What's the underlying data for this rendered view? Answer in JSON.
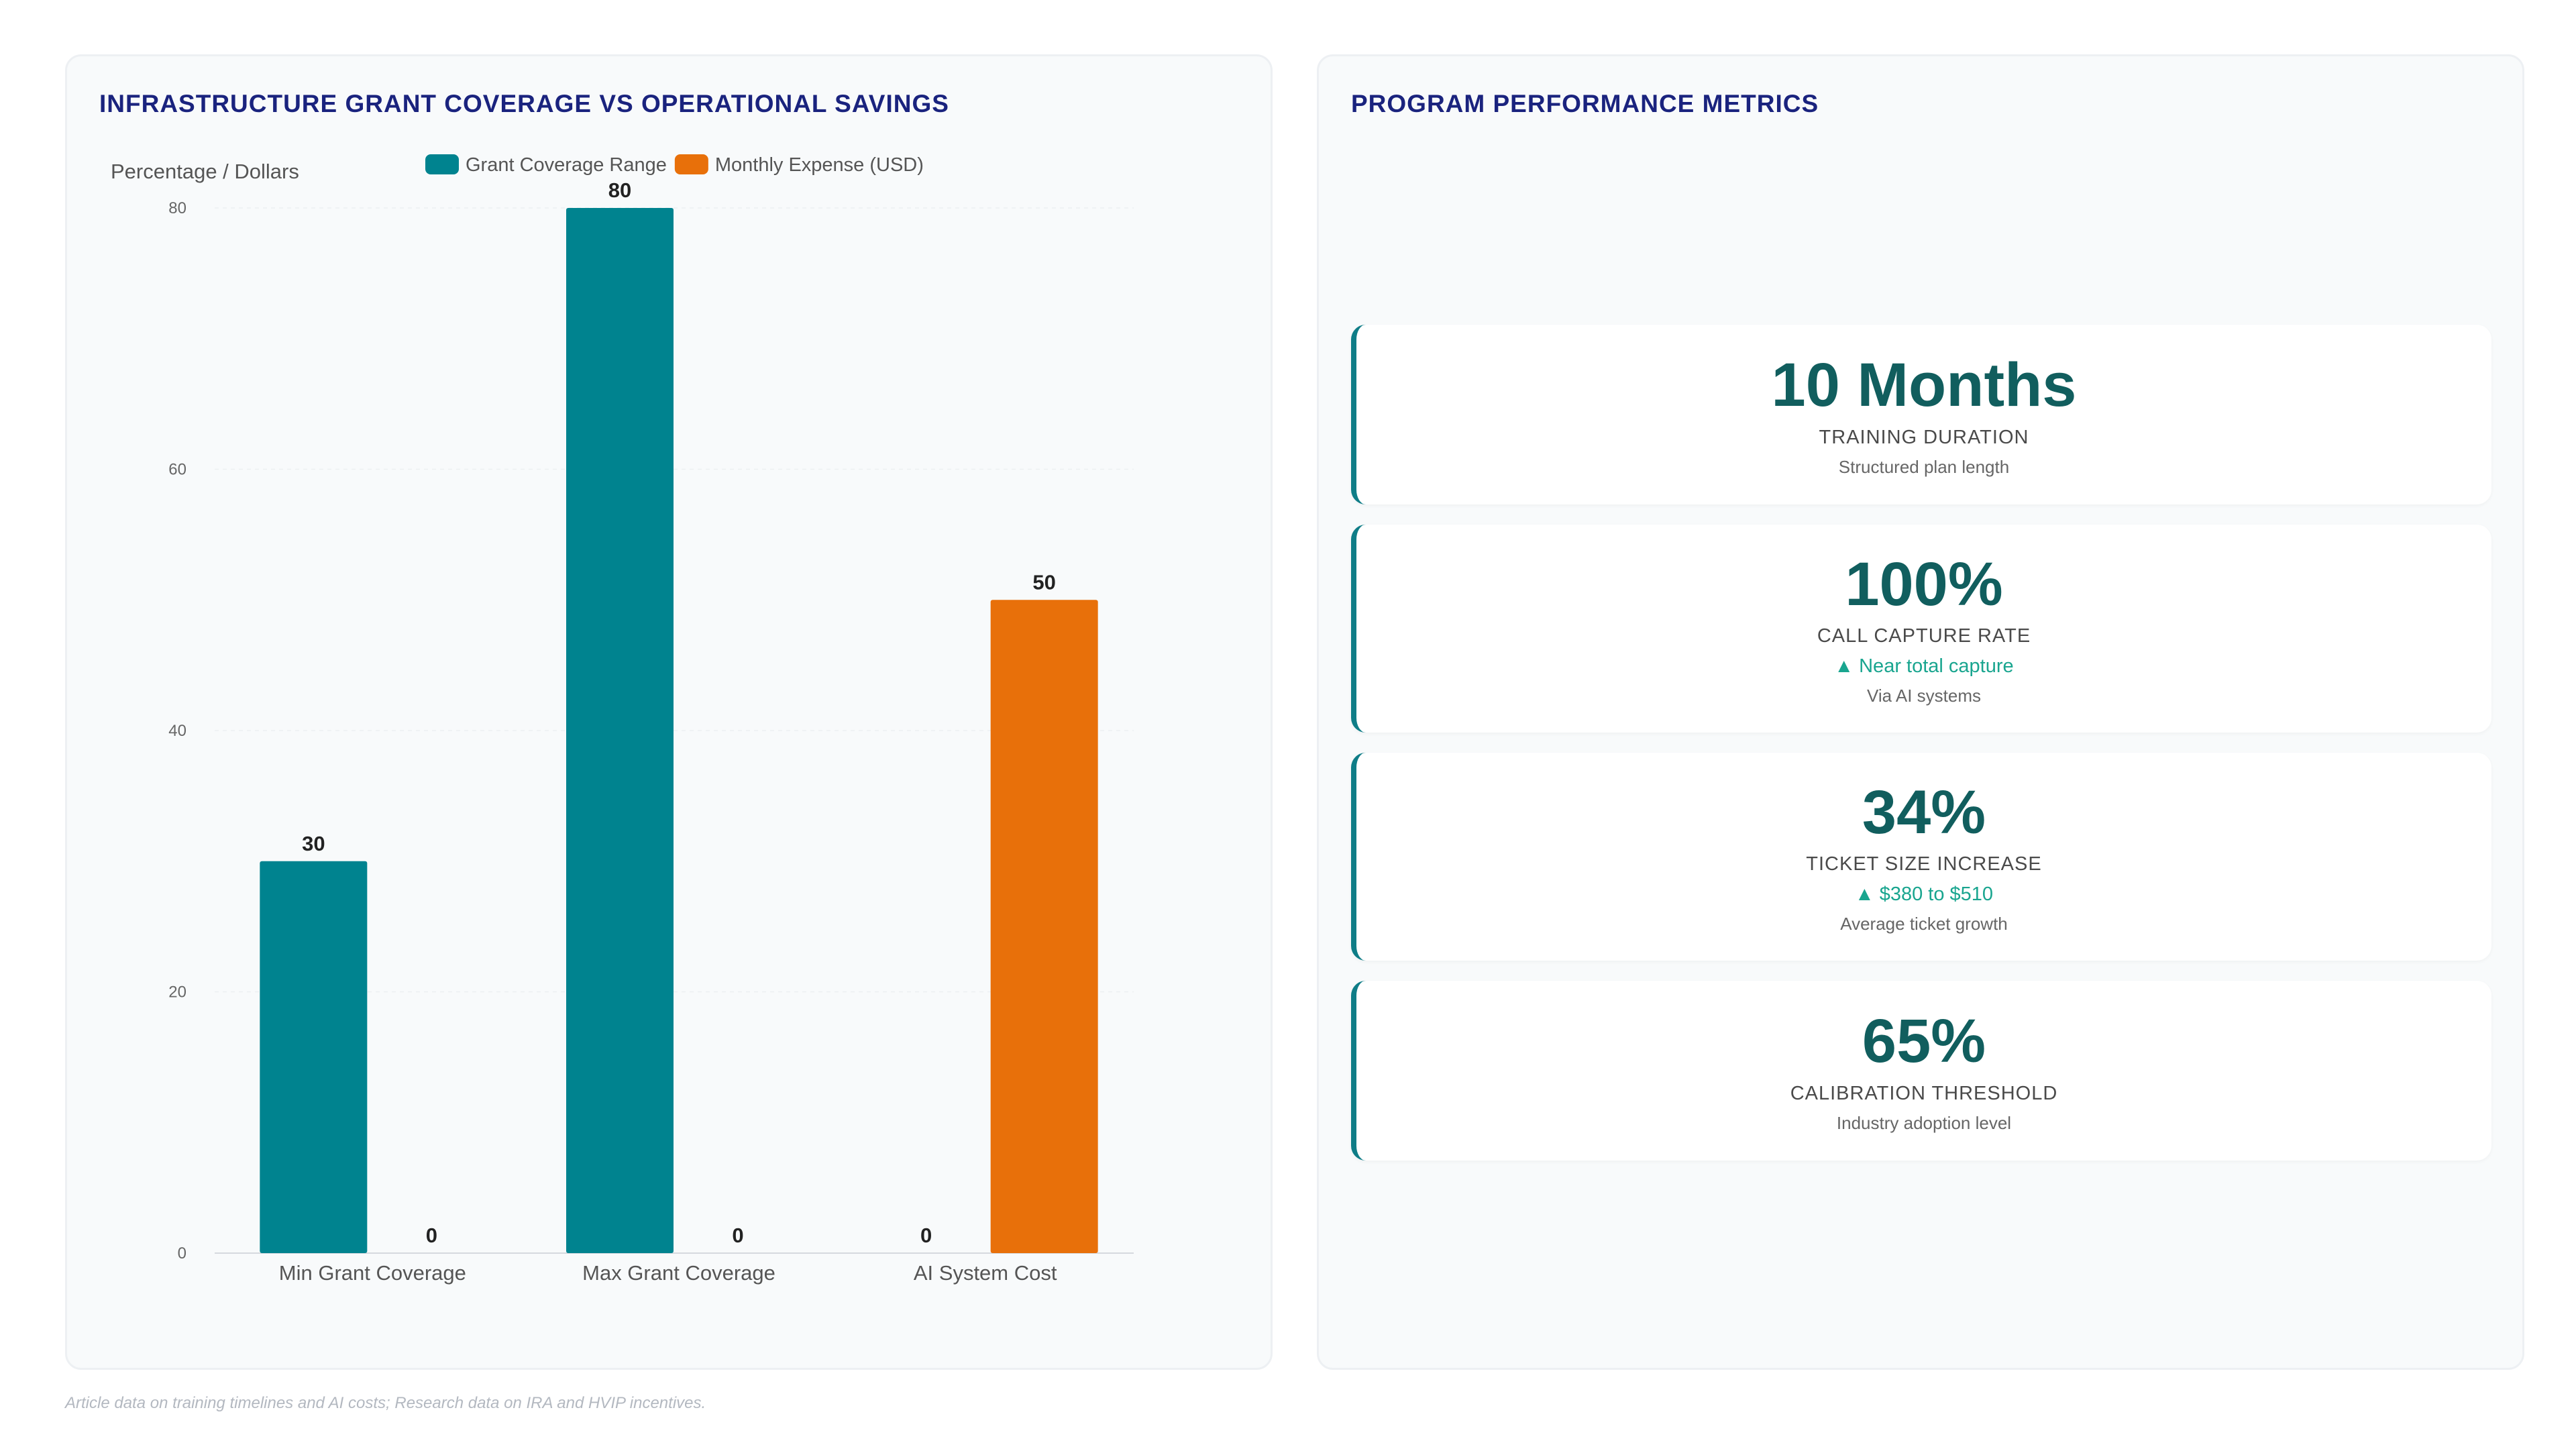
{
  "left_panel": {
    "title": "INFRASTRUCTURE GRANT COVERAGE VS OPERATIONAL SAVINGS"
  },
  "right_panel": {
    "title": "PROGRAM PERFORMANCE METRICS",
    "metrics": [
      {
        "value": "10 Months",
        "label": "TRAINING DURATION",
        "trend": "",
        "sub": "Structured plan length"
      },
      {
        "value": "100%",
        "label": "CALL CAPTURE RATE",
        "trend": "▲ Near total capture",
        "sub": "Via AI systems"
      },
      {
        "value": "34%",
        "label": "TICKET SIZE INCREASE",
        "trend": "▲ $380 to $510",
        "sub": "Average ticket growth"
      },
      {
        "value": "65%",
        "label": "CALIBRATION THRESHOLD",
        "trend": "",
        "sub": "Industry adoption level"
      }
    ]
  },
  "source_note": "Article data on training timelines and AI costs; Research data on IRA and HVIP incentives.",
  "chart_data": {
    "type": "bar",
    "title": "INFRASTRUCTURE GRANT COVERAGE VS OPERATIONAL SAVINGS",
    "ylabel": "Percentage / Dollars",
    "xlabel": "",
    "categories": [
      "Min Grant Coverage",
      "Max Grant Coverage",
      "AI System Cost"
    ],
    "series": [
      {
        "name": "Grant Coverage Range",
        "color": "#00838f",
        "values": [
          30,
          80,
          0
        ]
      },
      {
        "name": "Monthly Expense (USD)",
        "color": "#e8700a",
        "values": [
          0,
          0,
          50
        ]
      }
    ],
    "ylim": [
      0,
      80
    ],
    "yticks": [
      0,
      20,
      40,
      60,
      80
    ],
    "grid": true,
    "legend": "top-center",
    "data_labels": true
  }
}
